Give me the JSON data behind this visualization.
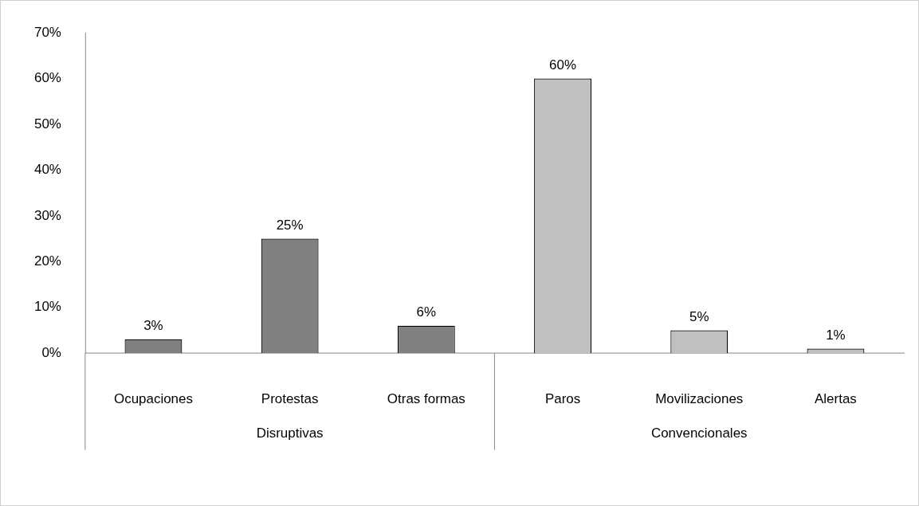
{
  "chart_data": {
    "type": "bar",
    "categories": [
      "Ocupaciones",
      "Protestas",
      "Otras formas",
      "Paros",
      "Movilizaciones",
      "Alertas"
    ],
    "values": [
      3,
      25,
      6,
      60,
      5,
      1
    ],
    "colors": [
      "#808080",
      "#808080",
      "#808080",
      "#c0c0c0",
      "#c0c0c0",
      "#c0c0c0"
    ],
    "value_labels": [
      "3%",
      "25%",
      "6%",
      "60%",
      "5%",
      "1%"
    ],
    "ylim": [
      0,
      70
    ],
    "yticks": [
      {
        "value": 0,
        "label": "0%"
      },
      {
        "value": 10,
        "label": "10%"
      },
      {
        "value": 20,
        "label": "20%"
      },
      {
        "value": 30,
        "label": "30%"
      },
      {
        "value": 40,
        "label": "40%"
      },
      {
        "value": 50,
        "label": "50%"
      },
      {
        "value": 60,
        "label": "60%"
      },
      {
        "value": 70,
        "label": "70%"
      }
    ],
    "annotations": [
      "Disruptivas",
      "Convencionales"
    ],
    "grid": false,
    "legend": false
  }
}
